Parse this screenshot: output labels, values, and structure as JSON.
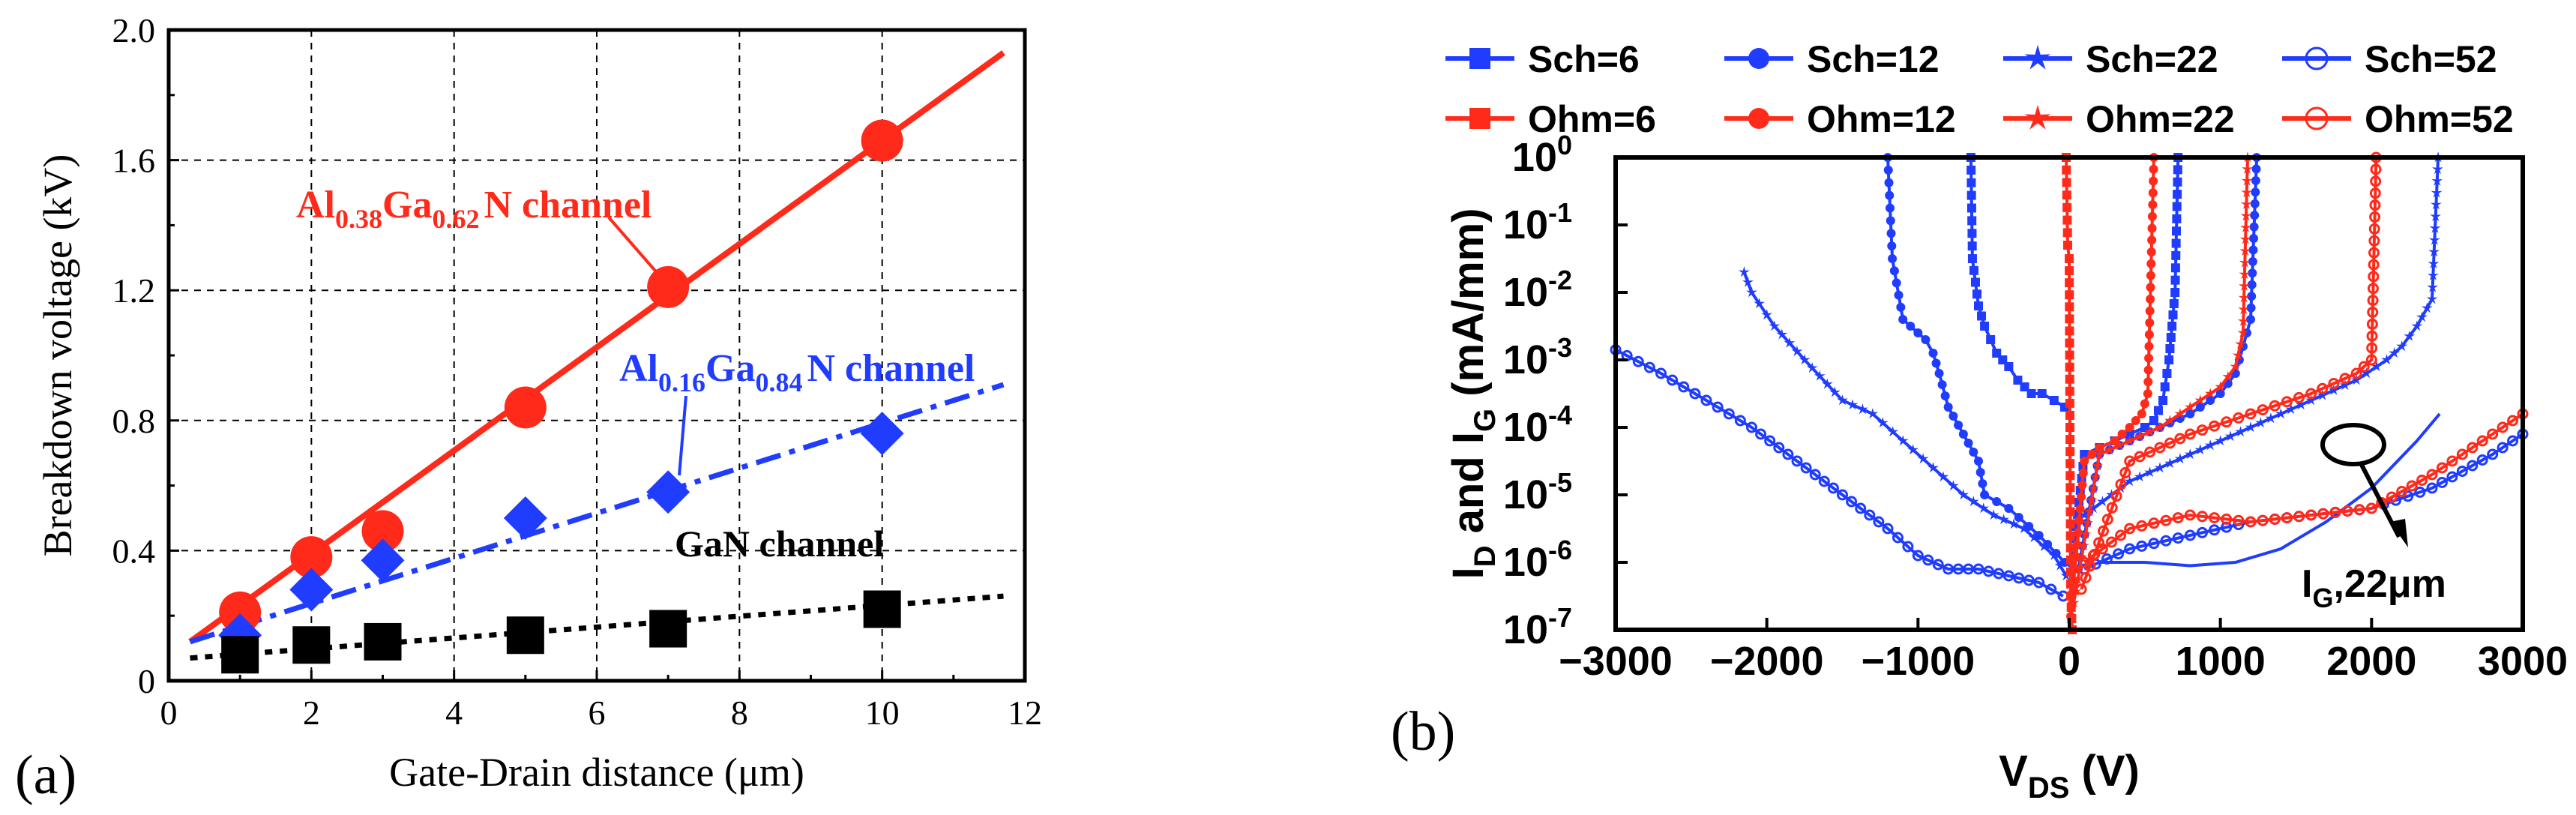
{
  "chart_data": [
    {
      "panel": "(a)",
      "type": "scatter",
      "xlabel": "Gate-Drain distance (μm)",
      "ylabel": "Breakdown voltage (kV)",
      "xlim": [
        0,
        12
      ],
      "ylim": [
        0,
        2.0
      ],
      "xticks": [
        "0",
        "2",
        "4",
        "6",
        "8",
        "10",
        "12"
      ],
      "yticks": [
        "0",
        "0.4",
        "0.8",
        "1.2",
        "1.6",
        "2.0"
      ],
      "grid": true,
      "series": [
        {
          "name": "Al0.38Ga0.62N channel",
          "color": "#ff2a1a",
          "marker": "circle",
          "line": "solid",
          "x": [
            1,
            2,
            3,
            5,
            7,
            10
          ],
          "y": [
            0.21,
            0.38,
            0.46,
            0.84,
            1.21,
            1.66
          ],
          "fit": {
            "x": [
              0.3,
              11.7
            ],
            "y": [
              0.12,
              1.93
            ]
          }
        },
        {
          "name": "Al0.16Ga0.84N channel",
          "color": "#1f3cff",
          "marker": "diamond",
          "line": "dashdot",
          "x": [
            1,
            2,
            3,
            5,
            7,
            10
          ],
          "y": [
            0.14,
            0.28,
            0.37,
            0.5,
            0.58,
            0.76
          ],
          "fit": {
            "x": [
              0.3,
              11.7
            ],
            "y": [
              0.12,
              0.91
            ]
          }
        },
        {
          "name": "GaN channel",
          "color": "#000000",
          "marker": "square",
          "line": "dotted",
          "x": [
            1,
            2,
            3,
            5,
            7,
            10
          ],
          "y": [
            0.08,
            0.11,
            0.12,
            0.14,
            0.16,
            0.22
          ],
          "fit": {
            "x": [
              0.3,
              11.7
            ],
            "y": [
              0.07,
              0.26
            ]
          }
        }
      ],
      "annotations": {
        "al38": {
          "pre": "Al",
          "s1": "0.38",
          "mid": "Ga",
          "s2": "0.62",
          "post": "N channel"
        },
        "al16": {
          "pre": "Al",
          "s1": "0.16",
          "mid": "Ga",
          "s2": "0.84",
          "post": "N channel"
        },
        "gan": "GaN channel"
      }
    },
    {
      "panel": "(b)",
      "type": "line",
      "xlabel": {
        "main": "V",
        "sub": "DS",
        "unit": " (V)"
      },
      "ylabel": {
        "p1": "I",
        "s1": "D",
        "p2": " and I",
        "s2": "G",
        "p3": " (mA/mm)"
      },
      "xlim": [
        -3000,
        3000
      ],
      "ylim_log10": [
        -7,
        0
      ],
      "xticks": [
        "−3000",
        "−2000",
        "−1000",
        "0",
        "1000",
        "2000",
        "3000"
      ],
      "yticks": [
        {
          "base": "10",
          "exp": "0"
        },
        {
          "base": "10",
          "exp": "-1"
        },
        {
          "base": "10",
          "exp": "-2"
        },
        {
          "base": "10",
          "exp": "-3"
        },
        {
          "base": "10",
          "exp": "-4"
        },
        {
          "base": "10",
          "exp": "-5"
        },
        {
          "base": "10",
          "exp": "-6"
        },
        {
          "base": "10",
          "exp": "-7"
        }
      ],
      "legend": [
        {
          "name": "Sch=6",
          "color": "#1f3cff",
          "marker": "square"
        },
        {
          "name": "Sch=12",
          "color": "#1f3cff",
          "marker": "circle"
        },
        {
          "name": "Sch=22",
          "color": "#1f3cff",
          "marker": "star"
        },
        {
          "name": "Sch=52",
          "color": "#1f3cff",
          "marker": "ring"
        },
        {
          "name": "Ohm=6",
          "color": "#ff2a1a",
          "marker": "square"
        },
        {
          "name": "Ohm=12",
          "color": "#ff2a1a",
          "marker": "circle"
        },
        {
          "name": "Ohm=22",
          "color": "#ff2a1a",
          "marker": "star"
        },
        {
          "name": "Ohm=52",
          "color": "#ff2a1a",
          "marker": "ring"
        }
      ],
      "series": [
        {
          "name": "Sch=6",
          "color": "#1f3cff",
          "marker": "square",
          "x": [
            -650,
            -640,
            -600,
            -560,
            -480,
            -400,
            -340,
            -250,
            -180,
            -100,
            -30
          ],
          "logy": [
            0,
            -1.5,
            -2.2,
            -2.5,
            -2.9,
            -3.1,
            -3.3,
            -3.5,
            -3.5,
            -3.6,
            -3.7
          ]
        },
        {
          "name": "Sch=12",
          "color": "#1f3cff",
          "marker": "circle",
          "x": [
            -1200,
            -1170,
            -1100,
            -1000,
            -950,
            -900,
            -860,
            -800,
            -700,
            -600,
            -560,
            -400,
            -200,
            -30
          ],
          "logy": [
            0,
            -1.5,
            -2.4,
            -2.6,
            -2.7,
            -2.9,
            -3.2,
            -3.7,
            -4.1,
            -4.5,
            -5.0,
            -5.2,
            -5.6,
            -6.0
          ]
        },
        {
          "name": "Sch=22",
          "color": "#1f3cff",
          "marker": "star",
          "x": [
            -2150,
            -2100,
            -1950,
            -1750,
            -1500,
            -1300,
            -1100,
            -900,
            -700,
            -500,
            -300,
            -100,
            -20
          ],
          "logy": [
            -1.7,
            -2.0,
            -2.5,
            -3.0,
            -3.6,
            -3.8,
            -4.2,
            -4.6,
            -5.0,
            -5.3,
            -5.5,
            -5.9,
            -6.2
          ]
        },
        {
          "name": "Sch=52",
          "color": "#1f3cff",
          "marker": "ring",
          "x": [
            -3000,
            -2700,
            -2400,
            -2100,
            -1800,
            -1500,
            -1200,
            -1000,
            -800,
            -600,
            -400,
            -200,
            -40
          ],
          "logy": [
            -2.85,
            -3.2,
            -3.6,
            -4.0,
            -4.5,
            -5.0,
            -5.5,
            -5.9,
            -6.1,
            -6.1,
            -6.2,
            -6.3,
            -6.5
          ]
        },
        {
          "name": "Sch=6 fwd",
          "color": "#1f3cff",
          "marker": "square",
          "x": [
            20,
            100,
            200,
            300,
            400,
            500,
            560,
            620,
            660,
            700,
            720
          ],
          "logy": [
            -6.0,
            -4.4,
            -4.3,
            -4.2,
            -4.1,
            -4.0,
            -3.9,
            -3.6,
            -3.0,
            -2.0,
            0
          ]
        },
        {
          "name": "Sch=12 fwd",
          "color": "#1f3cff",
          "marker": "circle",
          "x": [
            60,
            200,
            400,
            600,
            800,
            1000,
            1100,
            1150,
            1200,
            1240
          ],
          "logy": [
            -6.1,
            -4.4,
            -4.2,
            -4.0,
            -3.8,
            -3.5,
            -3.2,
            -2.8,
            -2.4,
            0
          ]
        },
        {
          "name": "Sch=22 fwd",
          "color": "#1f3cff",
          "marker": "star",
          "x": [
            100,
            400,
            800,
            1200,
            1600,
            1900,
            2100,
            2200,
            2300,
            2400,
            2440
          ],
          "logy": [
            -5.3,
            -4.8,
            -4.4,
            -4.0,
            -3.6,
            -3.3,
            -3.0,
            -2.8,
            -2.5,
            -2.1,
            0
          ]
        },
        {
          "name": "Sch=52 fwd",
          "color": "#1f3cff",
          "marker": "ring",
          "x": [
            100,
            400,
            800,
            1200,
            1600,
            2000,
            2400,
            2800,
            3000
          ],
          "logy": [
            -6.1,
            -5.8,
            -5.6,
            -5.4,
            -5.3,
            -5.2,
            -4.9,
            -4.4,
            -4.1
          ]
        },
        {
          "name": "IG 22um",
          "color": "#1f3cff",
          "marker": "none",
          "x": [
            200,
            500,
            800,
            1100,
            1400,
            1700,
            2000,
            2300,
            2450
          ],
          "logy": [
            -6.0,
            -6.0,
            -6.05,
            -6.0,
            -5.8,
            -5.4,
            -4.9,
            -4.2,
            -3.8
          ]
        },
        {
          "name": "Ohm=6",
          "color": "#ff2a1a",
          "marker": "square",
          "x": [
            -20,
            -10,
            0,
            5,
            10,
            20
          ],
          "logy": [
            0,
            -1.3,
            -1.5,
            -4.0,
            -6.5,
            -7
          ]
        },
        {
          "name": "Ohm=12",
          "color": "#ff2a1a",
          "marker": "circle",
          "x": [
            10,
            100,
            200,
            300,
            400,
            480,
            520,
            560
          ],
          "logy": [
            -6.8,
            -4.5,
            -4.3,
            -4.2,
            -4.0,
            -3.8,
            -3.5,
            0
          ]
        },
        {
          "name": "Ohm=22",
          "color": "#ff2a1a",
          "marker": "star",
          "x": [
            30,
            200,
            400,
            600,
            800,
            1000,
            1100,
            1150,
            1180
          ],
          "logy": [
            -6.6,
            -4.4,
            -4.2,
            -4.0,
            -3.7,
            -3.4,
            -3.1,
            -2.6,
            0
          ]
        },
        {
          "name": "Ohm=52",
          "color": "#ff2a1a",
          "marker": "ring",
          "x": [
            80,
            400,
            800,
            1200,
            1600,
            1900,
            2000,
            2030
          ],
          "logy": [
            -6.4,
            -4.5,
            -4.1,
            -3.8,
            -3.5,
            -3.2,
            -3.0,
            0
          ]
        },
        {
          "name": "Ohm=52 tail",
          "color": "#ff2a1a",
          "marker": "ring",
          "x": [
            100,
            400,
            800,
            1200,
            1600,
            2000,
            2400,
            2800,
            3000
          ],
          "logy": [
            -6.0,
            -5.5,
            -5.3,
            -5.4,
            -5.3,
            -5.2,
            -4.7,
            -4.1,
            -3.8
          ]
        }
      ],
      "annotation": {
        "main": "I",
        "sub": "G",
        "rest": ",22μm"
      }
    }
  ]
}
